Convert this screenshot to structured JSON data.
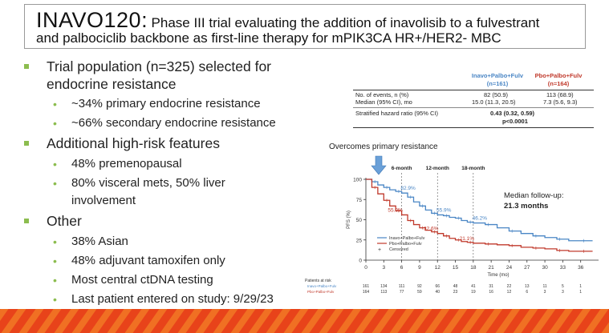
{
  "title": {
    "main": "INAVO120:",
    "rest": "Phase III trial evaluating the addition of inavolisib to a fulvestrant",
    "line2": "and palbociclib backbone as first-line therapy for mPIK3CA HR+/HER2- MBC"
  },
  "bullets": [
    {
      "text": "Trial population (n=325) selected for endocrine resistance",
      "line1": "Trial population (n=325) selected for",
      "line2": "endocrine resistance",
      "subs": [
        "~34% primary endocrine resistance",
        "~66% secondary endocrine resistance"
      ]
    },
    {
      "text": "Additional high-risk features",
      "subs": [
        "48% premenopausal",
        "80% visceral mets, 50% liver involvement"
      ],
      "sub2_line1": "80% visceral mets, 50% liver",
      "sub2_line2": "involvement"
    },
    {
      "text": "Other",
      "subs": [
        "38% Asian",
        "48% adjuvant tamoxifen only",
        "Most central ctDNA testing",
        "Last patient entered on study: 9/29/23"
      ]
    }
  ],
  "table": {
    "col1_header": [
      "Inavo+Palbo+Fulv",
      "(n=161)"
    ],
    "col2_header": [
      "Pbo+Palbo+Fulv",
      "(n=164)"
    ],
    "rows": [
      {
        "label": "No. of events, n (%)",
        "c1": "82 (50.9)",
        "c2": "113 (68.9)"
      },
      {
        "label": "Median (95% CI), mo",
        "c1": "15.0 (11.3, 20.5)",
        "c2": "7.3 (5.6, 9.3)"
      },
      {
        "label": "Stratified hazard ratio (95% CI)",
        "hr": "0.43 (0.32, 0.59)"
      }
    ],
    "p_value": "p<0.0001"
  },
  "annotations": {
    "overcomes": "Overcomes primary resistance",
    "median_fu_label": "Median follow-up:",
    "median_fu_value": "21.3 months"
  },
  "colors": {
    "accent_green": "#8cbd4f",
    "inavo_blue": "#4a86c5",
    "pbo_red": "#c0392b",
    "bottom_band": "#e8431a"
  },
  "chart_data": {
    "type": "line",
    "xlabel": "Time (mo)",
    "ylabel": "PFS (%)",
    "x_ticks": [
      0,
      3,
      6,
      9,
      12,
      15,
      18,
      21,
      24,
      27,
      30,
      33,
      36
    ],
    "y_ticks": [
      0,
      25,
      50,
      75,
      100
    ],
    "xlim": [
      0,
      39
    ],
    "ylim": [
      0,
      100
    ],
    "landmarks": [
      {
        "label": "6-month",
        "x": 6,
        "inavo": "82.9%",
        "pbo": "55.9%"
      },
      {
        "label": "12-month",
        "x": 12,
        "inavo": "55.9%",
        "pbo": "32.6%"
      },
      {
        "label": "18-month",
        "x": 18,
        "inavo": "46.2%",
        "pbo": "21.1%"
      }
    ],
    "legend": [
      "Inavo+Palbo+Fulv",
      "Pbo+Palbo+Fulv",
      "Censored"
    ],
    "censored_symbol": "+",
    "series": [
      {
        "name": "Inavo+Palbo+Fulv",
        "x": [
          0,
          1,
          2,
          3,
          4,
          5,
          6,
          7,
          8,
          9,
          10,
          11,
          12,
          13,
          14,
          15,
          16,
          17,
          18,
          20,
          22,
          24,
          26,
          28,
          30,
          32,
          34,
          36,
          38
        ],
        "y": [
          100,
          97,
          93,
          90,
          87,
          85,
          83,
          78,
          72,
          67,
          62,
          58,
          56,
          55,
          53,
          52,
          49,
          47,
          46,
          44,
          40,
          36,
          33,
          30,
          28,
          26,
          24,
          24,
          24
        ]
      },
      {
        "name": "Pbo+Palbo+Fulv",
        "x": [
          0,
          1,
          2,
          3,
          4,
          5,
          6,
          7,
          8,
          9,
          10,
          11,
          12,
          13,
          14,
          15,
          16,
          17,
          18,
          20,
          22,
          24,
          26,
          28,
          30,
          32,
          34,
          36,
          38
        ],
        "y": [
          100,
          90,
          82,
          74,
          67,
          61,
          56,
          49,
          44,
          40,
          37,
          35,
          33,
          30,
          27,
          25,
          23,
          22,
          21,
          20,
          19,
          18,
          16,
          15,
          14,
          12,
          11,
          11,
          11
        ]
      }
    ],
    "patients_at_risk": {
      "label": "Patients at risk",
      "rows": [
        {
          "name": "Inavo+Palbo+Fulv",
          "values": [
            "161",
            "134",
            "111",
            "92",
            "66",
            "48",
            "41",
            "31",
            "22",
            "13",
            "11",
            "5",
            "1"
          ]
        },
        {
          "name": "Pbo+Palbo+Fulv",
          "values": [
            "164",
            "113",
            "77",
            "59",
            "40",
            "23",
            "19",
            "16",
            "12",
            "6",
            "3",
            "3",
            "1"
          ]
        }
      ]
    }
  }
}
